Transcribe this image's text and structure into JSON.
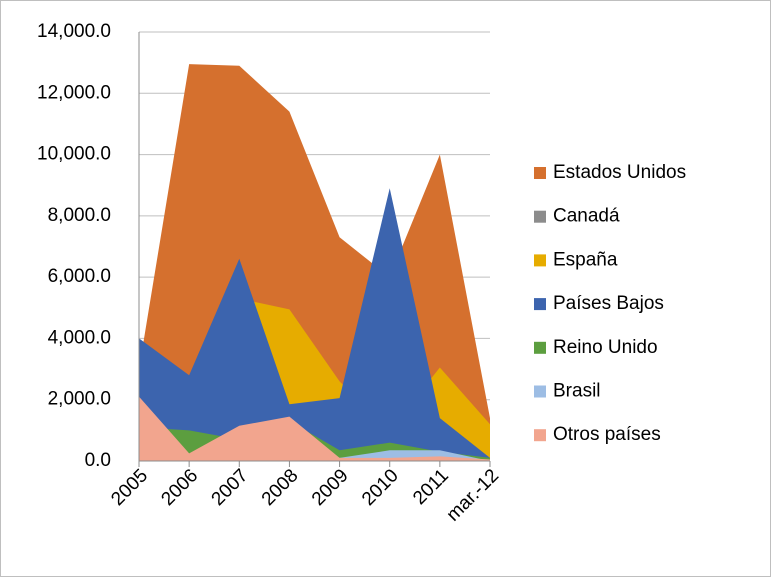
{
  "chart_data": {
    "type": "area",
    "categories": [
      "2005",
      "2006",
      "2007",
      "2008",
      "2009",
      "2010",
      "2011",
      "mar.-12"
    ],
    "series": [
      {
        "name": "Estados Unidos",
        "color": "#d5702e",
        "values": [
          3000,
          12950,
          12900,
          11400,
          7300,
          6000,
          10000,
          1400
        ]
      },
      {
        "name": "Canadá",
        "color": "#8c8c8c",
        "values": [
          0,
          0,
          0,
          0,
          0,
          0,
          0,
          0
        ]
      },
      {
        "name": "España",
        "color": "#e6ac00",
        "values": [
          1500,
          2000,
          5300,
          4950,
          2600,
          1000,
          3050,
          1200
        ]
      },
      {
        "name": "Países Bajos",
        "color": "#3c64ae",
        "values": [
          4000,
          2800,
          6600,
          1850,
          2050,
          8900,
          1400,
          100
        ]
      },
      {
        "name": "Reino Unido",
        "color": "#5c9e3f",
        "values": [
          1100,
          1000,
          700,
          1300,
          350,
          600,
          300,
          100
        ]
      },
      {
        "name": "Brasil",
        "color": "#9dbde4",
        "values": [
          0,
          0,
          0,
          0,
          100,
          350,
          350,
          0
        ]
      },
      {
        "name": "Otros países",
        "color": "#f2a58e",
        "values": [
          2100,
          250,
          1150,
          1450,
          100,
          100,
          150,
          50
        ]
      }
    ],
    "ylim": [
      0,
      14000
    ],
    "yticks": [
      {
        "value": 0,
        "label": "0.0"
      },
      {
        "value": 2000,
        "label": "2,000.0"
      },
      {
        "value": 4000,
        "label": "4,000.0"
      },
      {
        "value": 6000,
        "label": "6,000.0"
      },
      {
        "value": 8000,
        "label": "8,000.0"
      },
      {
        "value": 10000,
        "label": "10,000.0"
      },
      {
        "value": 12000,
        "label": "12,000.0"
      },
      {
        "value": 14000,
        "label": "14,000.0"
      }
    ],
    "grid": true,
    "legend": "right"
  }
}
